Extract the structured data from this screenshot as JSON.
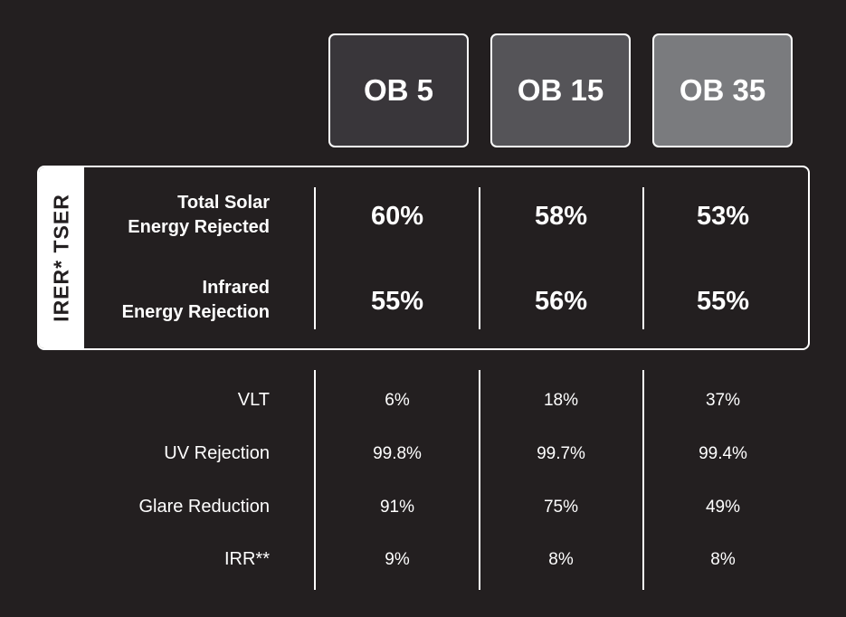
{
  "products": [
    "OB 5",
    "OB 15",
    "OB 35"
  ],
  "highlight": {
    "side_label": "IRER*  TSER",
    "rows": [
      {
        "label_line1": "Total Solar",
        "label_line2": "Energy Rejected",
        "values": [
          "60%",
          "58%",
          "53%"
        ]
      },
      {
        "label_line1": "Infrared",
        "label_line2": "Energy Rejection",
        "values": [
          "55%",
          "56%",
          "55%"
        ]
      }
    ]
  },
  "specs": [
    {
      "label": "VLT",
      "values": [
        "6%",
        "18%",
        "37%"
      ]
    },
    {
      "label": "UV Rejection",
      "values": [
        "99.8%",
        "99.7%",
        "99.4%"
      ]
    },
    {
      "label": "Glare Reduction",
      "values": [
        "91%",
        "75%",
        "49%"
      ]
    },
    {
      "label": "IRR**",
      "values": [
        "9%",
        "8%",
        "8%"
      ]
    }
  ],
  "colors": {
    "background": "#231f20",
    "ob5_tile": "#39363a",
    "ob15_tile": "#555458",
    "ob35_tile": "#7a7b7e",
    "foreground": "#ffffff"
  }
}
